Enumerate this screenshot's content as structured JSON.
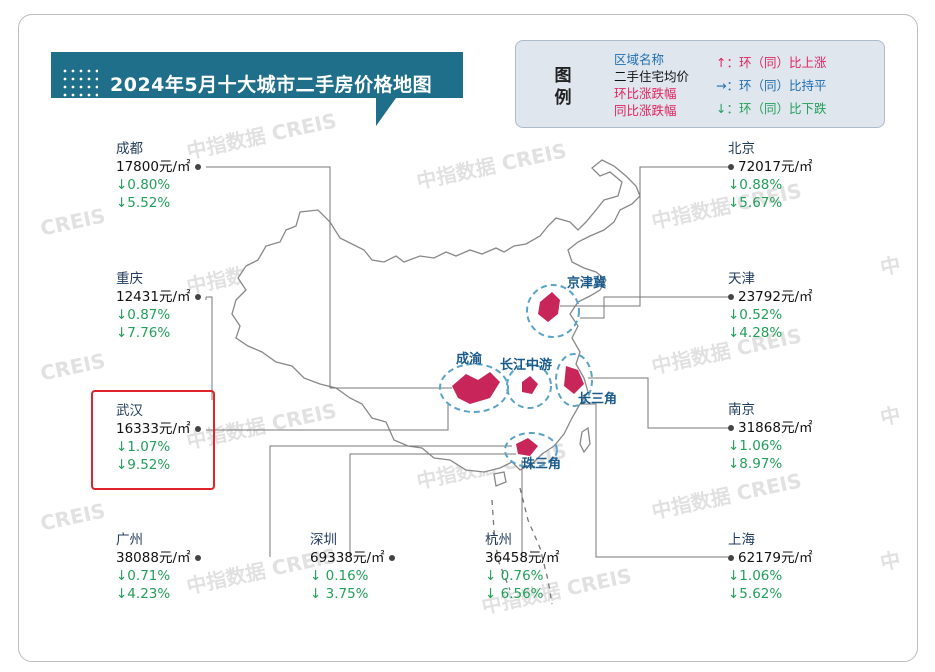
{
  "title": "2024年5月十大城市二手房价格地图",
  "legend": {
    "title_chars": [
      "图",
      "例"
    ],
    "left_lines": [
      {
        "text": "区域名称",
        "color": "#1f6fb0"
      },
      {
        "text": "二手住宅均价",
        "color": "#111111"
      },
      {
        "text": "环比涨跌幅",
        "color": "#e0245e"
      },
      {
        "text": "同比涨跌幅",
        "color": "#e0245e"
      }
    ],
    "right_lines": [
      {
        "symbol": "↑：",
        "text": "环（同）比上涨",
        "color": "#e0245e"
      },
      {
        "symbol": "→：",
        "text": "环（同）比持平",
        "color": "#1f6fb0"
      },
      {
        "symbol": "↓：",
        "text": "环（同）比下跌",
        "color": "#22a05a"
      }
    ]
  },
  "cities": [
    {
      "id": "chengdu",
      "name": "成都",
      "price": "17800元/㎡",
      "mom": "↓0.80%",
      "yoy": "↓5.52%"
    },
    {
      "id": "chongqing",
      "name": "重庆",
      "price": "12431元/㎡",
      "mom": "↓0.87%",
      "yoy": "↓7.76%"
    },
    {
      "id": "wuhan",
      "name": "武汉",
      "price": "16333元/㎡",
      "mom": "↓1.07%",
      "yoy": "↓9.52%"
    },
    {
      "id": "guangzhou",
      "name": "广州",
      "price": "38088元/㎡",
      "mom": "↓0.71%",
      "yoy": "↓4.23%"
    },
    {
      "id": "shenzhen",
      "name": "深圳",
      "price": "69338元/㎡",
      "mom": "↓ 0.16%",
      "yoy": "↓ 3.75%"
    },
    {
      "id": "hangzhou",
      "name": "杭州",
      "price": "36458元/㎡",
      "mom": "↓ 0.76%",
      "yoy": "↓ 6.56%"
    },
    {
      "id": "beijing",
      "name": "北京",
      "price": "72017元/㎡",
      "mom": "↓0.88%",
      "yoy": "↓5.67%"
    },
    {
      "id": "tianjin",
      "name": "天津",
      "price": "23792元/㎡",
      "mom": "↓0.52%",
      "yoy": "↓4.28%"
    },
    {
      "id": "nanjing",
      "name": "南京",
      "price": "31868元/㎡",
      "mom": "↓1.06%",
      "yoy": "↓8.97%"
    },
    {
      "id": "shanghai",
      "name": "上海",
      "price": "62179元/㎡",
      "mom": "↓1.06%",
      "yoy": "↓5.62%"
    }
  ],
  "regions": [
    "京津冀",
    "成渝",
    "长江中游",
    "长三角",
    "珠三角"
  ],
  "watermarks": [
    "中指数据 CREIS",
    "CREIS",
    "中"
  ],
  "colors": {
    "banner": "#1f6f8b",
    "banner_dark": "#134c61",
    "region_fill": "#c8265a",
    "region_ring": "#5aa3c8",
    "map_line": "#888888",
    "decline": "#22a05a",
    "highlight": "#e0242b"
  }
}
